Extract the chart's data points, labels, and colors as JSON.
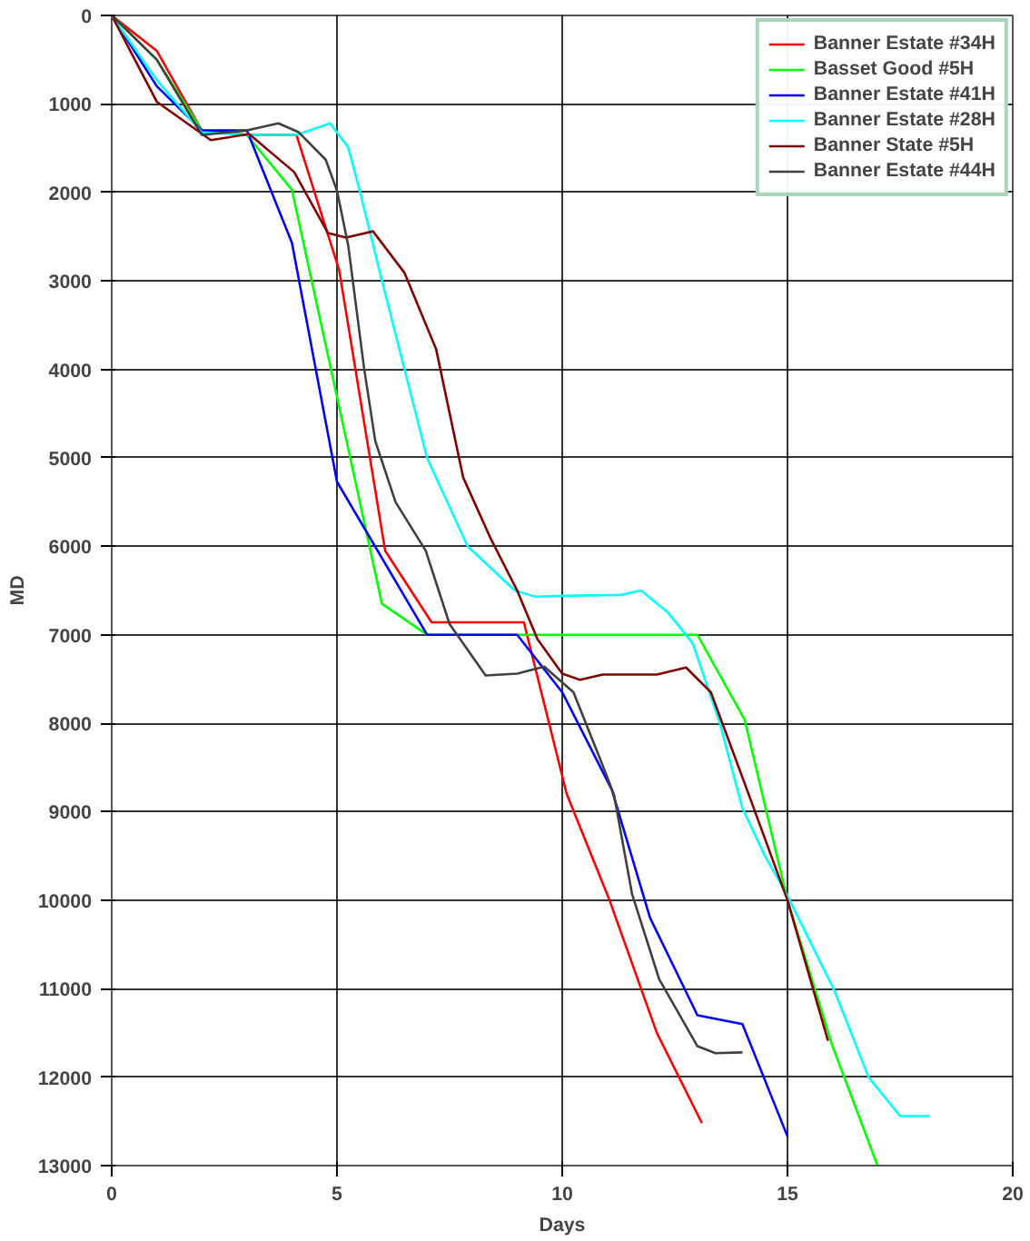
{
  "chart_data": {
    "type": "line",
    "xlabel": "Days",
    "ylabel": "MD",
    "xlim": [
      0,
      20
    ],
    "xticks": [
      0,
      5,
      10,
      15,
      20
    ],
    "ylim": [
      13000,
      0
    ],
    "yticks": [
      0,
      1000,
      2000,
      3000,
      4000,
      5000,
      6000,
      7000,
      8000,
      9000,
      10000,
      11000,
      12000,
      13000
    ],
    "grid": true,
    "legend": "top right",
    "marker": "none",
    "line_style": "solid",
    "series": [
      {
        "name": "Banner Estate #34H",
        "color": "#ff0000",
        "x": [
          0,
          1,
          2,
          3,
          4.1,
          5.05,
          6.07,
          7.1,
          9.15,
          10.1,
          11.05,
          12.1,
          13.1
        ],
        "values": [
          0,
          400,
          1300,
          1350,
          1350,
          2880,
          6050,
          6860,
          6860,
          8800,
          10000,
          11500,
          12520
        ]
      },
      {
        "name": "Basset Good #5H",
        "color": "#00ff00",
        "x": [
          0,
          1,
          2,
          3,
          4.0,
          6.0,
          7.0,
          13.0,
          14.05,
          15.0,
          16.0,
          17.0
        ],
        "values": [
          0,
          500,
          1300,
          1350,
          1970,
          6650,
          7000,
          7000,
          7960,
          10000,
          11650,
          13000
        ]
      },
      {
        "name": "Banner Estate #41H",
        "color": "#0000ff",
        "x": [
          0,
          1,
          2,
          3,
          4.0,
          5.0,
          7.0,
          9.0,
          10.0,
          11.1,
          11.95,
          13.0,
          14.0,
          15.0
        ],
        "values": [
          0,
          800,
          1300,
          1300,
          2570,
          5270,
          7000,
          7000,
          7650,
          8750,
          10200,
          11300,
          11400,
          12670
        ]
      },
      {
        "name": "Banner Estate #28H",
        "color": "#00ffff",
        "x": [
          0,
          1,
          2,
          3,
          4.1,
          4.85,
          5.25,
          5.5,
          6.0,
          7.0,
          7.9,
          8.95,
          9.4,
          10.0,
          11.3,
          11.75,
          12.35,
          12.9,
          13.5,
          14.0,
          14.5,
          15.0,
          16.05,
          16.8,
          17.5,
          18.15
        ],
        "values": [
          0,
          730,
          1320,
          1350,
          1350,
          1220,
          1490,
          1970,
          3000,
          5000,
          6000,
          6500,
          6570,
          6560,
          6550,
          6500,
          6750,
          7100,
          8000,
          8960,
          9500,
          9950,
          11030,
          12000,
          12440,
          12440
        ]
      },
      {
        "name": "Banner State #5H",
        "color": "#800000",
        "x": [
          0,
          1,
          2.2,
          3.05,
          4.05,
          4.8,
          5.2,
          5.8,
          6.5,
          7.2,
          7.8,
          8.4,
          9.0,
          9.45,
          10.0,
          10.4,
          10.9,
          12.1,
          12.75,
          13.3,
          14.1,
          15.0,
          15.9
        ],
        "values": [
          0,
          975,
          1410,
          1340,
          1770,
          2460,
          2510,
          2440,
          2910,
          3770,
          5220,
          5900,
          6500,
          7050,
          7440,
          7510,
          7450,
          7450,
          7370,
          7650,
          8750,
          10000,
          11590
        ]
      },
      {
        "name": "Banner Estate #44H",
        "color": "#404040",
        "x": [
          0,
          1,
          2,
          3,
          3.7,
          4.15,
          4.75,
          5.0,
          5.25,
          5.6,
          5.85,
          6.3,
          6.97,
          7.5,
          8.3,
          9.0,
          9.6,
          10.25,
          10.9,
          11.15,
          11.55,
          12.15,
          13.0,
          13.4,
          14.0
        ],
        "values": [
          0,
          500,
          1350,
          1300,
          1220,
          1320,
          1630,
          1980,
          2600,
          3980,
          4810,
          5500,
          6050,
          6880,
          7460,
          7440,
          7360,
          7650,
          8480,
          8810,
          9930,
          10890,
          11650,
          11730,
          11720
        ]
      }
    ]
  }
}
